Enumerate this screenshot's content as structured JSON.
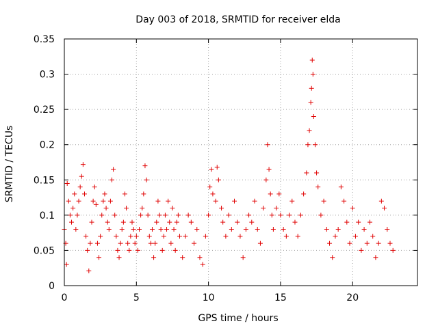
{
  "chart_data": {
    "type": "scatter",
    "title": "Day 003 of 2018, SRMTID for receiver elda",
    "xlabel": "GPS time / hours",
    "ylabel": "SRMTID / TECUs",
    "xlim": [
      0,
      24.5
    ],
    "ylim": [
      0,
      0.35
    ],
    "xticks": [
      0,
      5,
      10,
      15,
      20
    ],
    "xtick_labels": [
      "0",
      "5",
      "10",
      "15",
      "20"
    ],
    "yticks": [
      0,
      0.05,
      0.1,
      0.15,
      0.2,
      0.25,
      0.3,
      0.35
    ],
    "ytick_labels": [
      "0",
      "0.05",
      "0.1",
      "0.15",
      "0.2",
      "0.25",
      "0.3",
      "0.35"
    ],
    "grid": true,
    "marker": "+",
    "color": "#e00000",
    "series": [
      {
        "name": "SRMTID",
        "points": [
          [
            0.0,
            0.08
          ],
          [
            0.1,
            0.06
          ],
          [
            0.15,
            0.03
          ],
          [
            0.2,
            0.145
          ],
          [
            0.3,
            0.12
          ],
          [
            0.4,
            0.1
          ],
          [
            0.5,
            0.09
          ],
          [
            0.6,
            0.11
          ],
          [
            0.7,
            0.13
          ],
          [
            0.8,
            0.08
          ],
          [
            0.9,
            0.1
          ],
          [
            1.0,
            0.12
          ],
          [
            1.1,
            0.14
          ],
          [
            1.2,
            0.155
          ],
          [
            1.3,
            0.172
          ],
          [
            1.4,
            0.13
          ],
          [
            1.5,
            0.07
          ],
          [
            1.6,
            0.05
          ],
          [
            1.7,
            0.021
          ],
          [
            1.8,
            0.06
          ],
          [
            1.9,
            0.09
          ],
          [
            2.0,
            0.12
          ],
          [
            2.1,
            0.14
          ],
          [
            2.2,
            0.115
          ],
          [
            2.3,
            0.06
          ],
          [
            2.4,
            0.04
          ],
          [
            2.5,
            0.07
          ],
          [
            2.6,
            0.1
          ],
          [
            2.7,
            0.12
          ],
          [
            2.8,
            0.13
          ],
          [
            2.9,
            0.11
          ],
          [
            3.0,
            0.09
          ],
          [
            3.1,
            0.08
          ],
          [
            3.2,
            0.12
          ],
          [
            3.3,
            0.15
          ],
          [
            3.4,
            0.165
          ],
          [
            3.5,
            0.1
          ],
          [
            3.6,
            0.07
          ],
          [
            3.7,
            0.05
          ],
          [
            3.8,
            0.04
          ],
          [
            3.9,
            0.06
          ],
          [
            4.0,
            0.08
          ],
          [
            4.1,
            0.09
          ],
          [
            4.2,
            0.13
          ],
          [
            4.3,
            0.11
          ],
          [
            4.4,
            0.06
          ],
          [
            4.5,
            0.05
          ],
          [
            4.6,
            0.07
          ],
          [
            4.7,
            0.09
          ],
          [
            4.8,
            0.08
          ],
          [
            4.9,
            0.06
          ],
          [
            5.0,
            0.07
          ],
          [
            5.1,
            0.05
          ],
          [
            5.2,
            0.08
          ],
          [
            5.3,
            0.1
          ],
          [
            5.4,
            0.11
          ],
          [
            5.5,
            0.13
          ],
          [
            5.6,
            0.17
          ],
          [
            5.7,
            0.15
          ],
          [
            5.8,
            0.1
          ],
          [
            5.9,
            0.07
          ],
          [
            6.0,
            0.06
          ],
          [
            6.1,
            0.08
          ],
          [
            6.2,
            0.04
          ],
          [
            6.3,
            0.06
          ],
          [
            6.4,
            0.09
          ],
          [
            6.5,
            0.12
          ],
          [
            6.6,
            0.1
          ],
          [
            6.7,
            0.08
          ],
          [
            6.8,
            0.05
          ],
          [
            6.9,
            0.07
          ],
          [
            7.0,
            0.1
          ],
          [
            7.1,
            0.08
          ],
          [
            7.2,
            0.12
          ],
          [
            7.3,
            0.09
          ],
          [
            7.4,
            0.06
          ],
          [
            7.5,
            0.11
          ],
          [
            7.6,
            0.08
          ],
          [
            7.7,
            0.05
          ],
          [
            7.8,
            0.09
          ],
          [
            7.9,
            0.1
          ],
          [
            8.0,
            0.07
          ],
          [
            8.2,
            0.04
          ],
          [
            8.4,
            0.07
          ],
          [
            8.6,
            0.1
          ],
          [
            8.8,
            0.09
          ],
          [
            9.0,
            0.06
          ],
          [
            9.2,
            0.08
          ],
          [
            9.4,
            0.04
          ],
          [
            9.6,
            0.03
          ],
          [
            9.8,
            0.07
          ],
          [
            10.0,
            0.1
          ],
          [
            10.1,
            0.14
          ],
          [
            10.2,
            0.165
          ],
          [
            10.3,
            0.13
          ],
          [
            10.5,
            0.12
          ],
          [
            10.6,
            0.168
          ],
          [
            10.7,
            0.15
          ],
          [
            10.9,
            0.11
          ],
          [
            11.0,
            0.09
          ],
          [
            11.2,
            0.07
          ],
          [
            11.4,
            0.1
          ],
          [
            11.6,
            0.08
          ],
          [
            11.8,
            0.12
          ],
          [
            12.0,
            0.09
          ],
          [
            12.2,
            0.07
          ],
          [
            12.4,
            0.04
          ],
          [
            12.6,
            0.08
          ],
          [
            12.8,
            0.1
          ],
          [
            13.0,
            0.09
          ],
          [
            13.2,
            0.12
          ],
          [
            13.4,
            0.08
          ],
          [
            13.6,
            0.06
          ],
          [
            13.8,
            0.11
          ],
          [
            14.0,
            0.15
          ],
          [
            14.1,
            0.2
          ],
          [
            14.2,
            0.165
          ],
          [
            14.3,
            0.13
          ],
          [
            14.4,
            0.1
          ],
          [
            14.5,
            0.08
          ],
          [
            14.7,
            0.11
          ],
          [
            14.9,
            0.13
          ],
          [
            15.0,
            0.1
          ],
          [
            15.2,
            0.08
          ],
          [
            15.4,
            0.07
          ],
          [
            15.6,
            0.1
          ],
          [
            15.8,
            0.12
          ],
          [
            16.0,
            0.09
          ],
          [
            16.2,
            0.07
          ],
          [
            16.4,
            0.1
          ],
          [
            16.6,
            0.13
          ],
          [
            16.8,
            0.16
          ],
          [
            16.9,
            0.2
          ],
          [
            17.0,
            0.22
          ],
          [
            17.1,
            0.26
          ],
          [
            17.15,
            0.28
          ],
          [
            17.2,
            0.32
          ],
          [
            17.25,
            0.3
          ],
          [
            17.3,
            0.24
          ],
          [
            17.4,
            0.2
          ],
          [
            17.5,
            0.16
          ],
          [
            17.6,
            0.14
          ],
          [
            17.8,
            0.1
          ],
          [
            18.0,
            0.12
          ],
          [
            18.2,
            0.08
          ],
          [
            18.4,
            0.06
          ],
          [
            18.6,
            0.04
          ],
          [
            18.8,
            0.07
          ],
          [
            19.0,
            0.08
          ],
          [
            19.2,
            0.14
          ],
          [
            19.4,
            0.12
          ],
          [
            19.6,
            0.09
          ],
          [
            19.8,
            0.06
          ],
          [
            20.0,
            0.11
          ],
          [
            20.2,
            0.07
          ],
          [
            20.4,
            0.09
          ],
          [
            20.6,
            0.05
          ],
          [
            20.8,
            0.08
          ],
          [
            21.0,
            0.06
          ],
          [
            21.2,
            0.09
          ],
          [
            21.4,
            0.07
          ],
          [
            21.6,
            0.04
          ],
          [
            21.8,
            0.06
          ],
          [
            22.0,
            0.12
          ],
          [
            22.2,
            0.11
          ],
          [
            22.4,
            0.08
          ],
          [
            22.6,
            0.06
          ],
          [
            22.8,
            0.05
          ]
        ]
      }
    ]
  }
}
